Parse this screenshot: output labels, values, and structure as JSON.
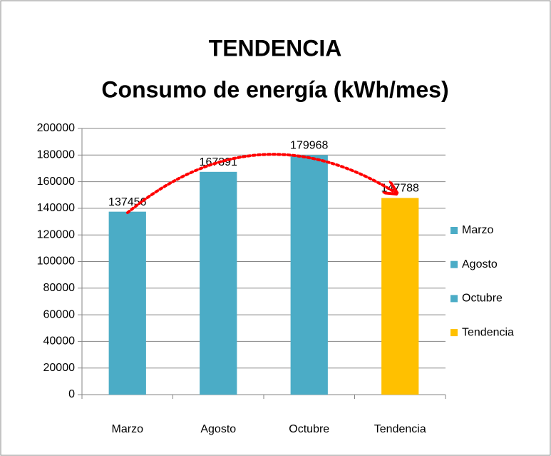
{
  "chart_data": {
    "type": "bar",
    "title": "TENDENCIA",
    "subtitle": "Consumo de energía (kWh/mes)",
    "categories": [
      "Marzo",
      "Agosto",
      "Octubre",
      "Tendencia"
    ],
    "values": [
      137456,
      167391,
      179968,
      147788
    ],
    "colors": [
      "#4bacc6",
      "#4bacc6",
      "#4bacc6",
      "#ffc000"
    ],
    "ylim": [
      0,
      200000
    ],
    "yticks": [
      0,
      20000,
      40000,
      60000,
      80000,
      100000,
      120000,
      140000,
      160000,
      180000,
      200000
    ],
    "grid": true,
    "legend": "right"
  }
}
